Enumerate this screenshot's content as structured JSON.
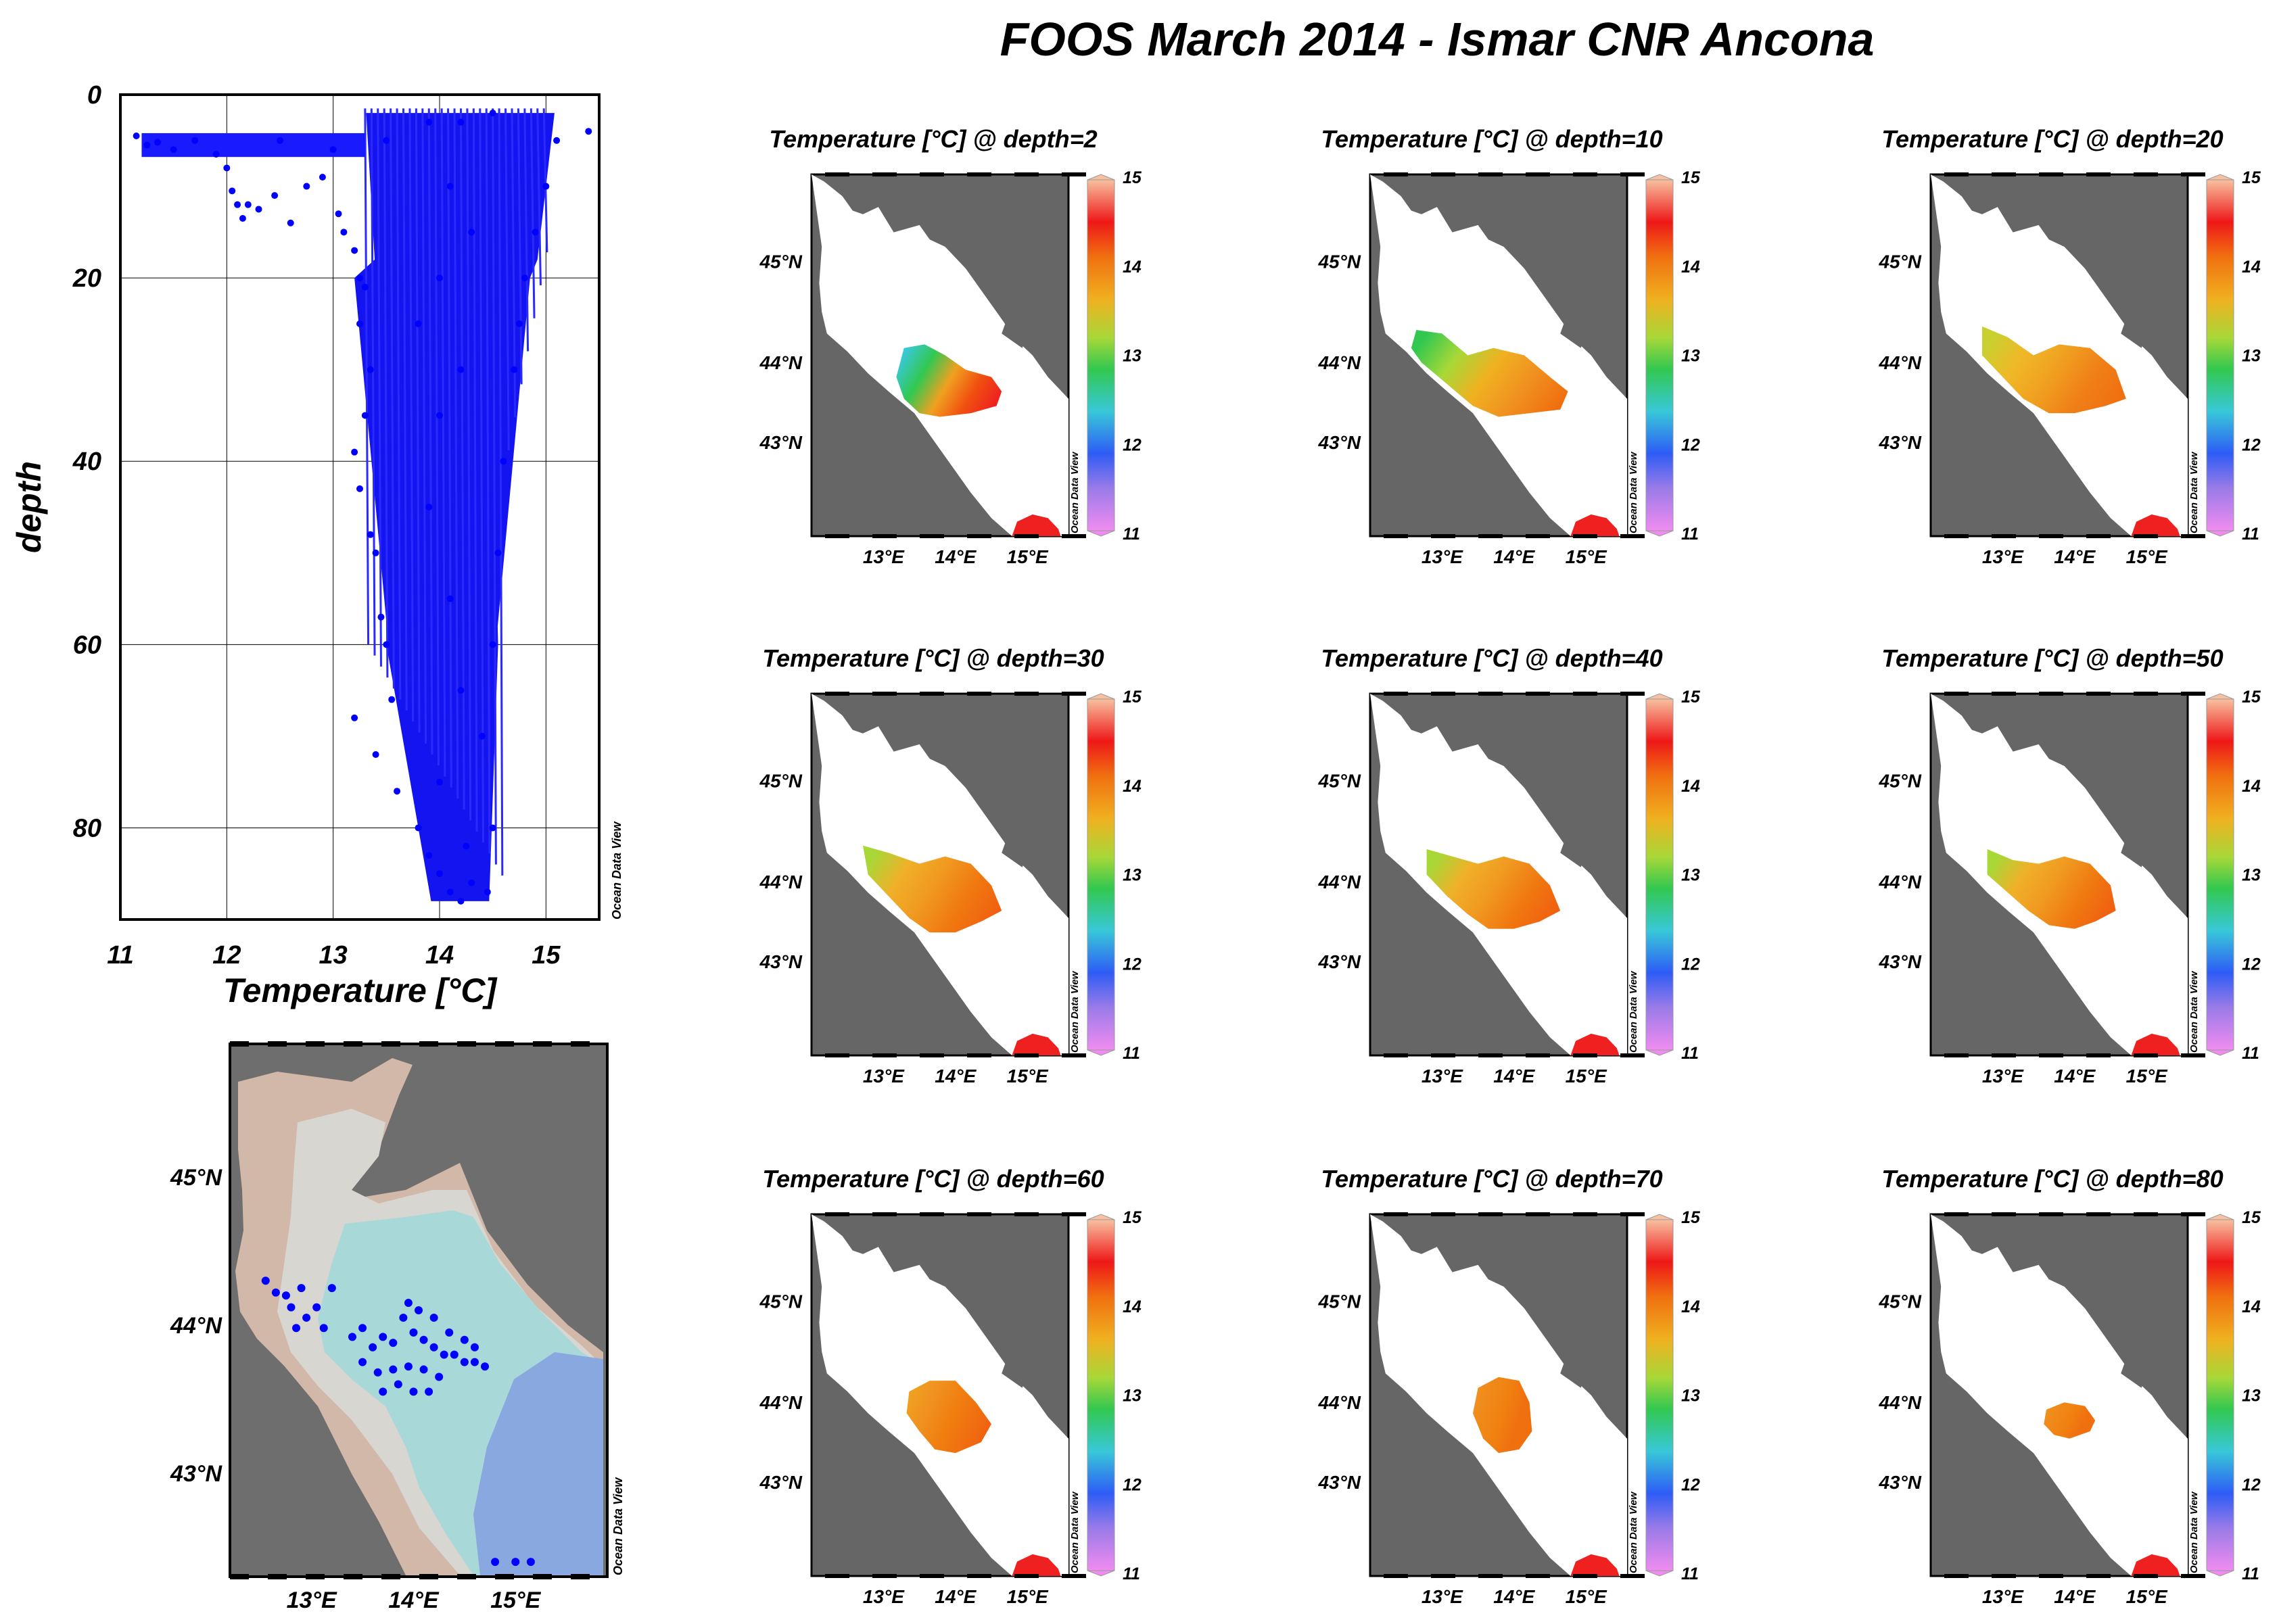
{
  "title": "FOOS March 2014 - Ismar CNR Ancona",
  "colors": {
    "land": "#666666",
    "sea": "#ffffff",
    "points": "#0000ff"
  },
  "chart_data": [
    {
      "type": "scatter",
      "title": "",
      "xlabel": "Temperature [°C]",
      "ylabel": "depth",
      "xlim": [
        11,
        15.5
      ],
      "ylim": [
        0,
        90
      ],
      "y_inverted": true,
      "x_ticks": [
        "11",
        "12",
        "13",
        "14",
        "15"
      ],
      "y_ticks": [
        "0",
        "20",
        "40",
        "60",
        "80"
      ],
      "grid": true,
      "watermark": "Ocean Data View",
      "series": [
        {
          "values_note_points": [
            [
              11.15,
              4.5
            ],
            [
              11.25,
              5.5
            ],
            [
              11.35,
              5.2
            ],
            [
              11.5,
              6
            ],
            [
              11.7,
              5
            ],
            [
              11.9,
              6.5
            ],
            [
              12.0,
              8
            ],
            [
              12.05,
              10.5
            ],
            [
              12.1,
              12
            ],
            [
              12.15,
              13.5
            ],
            [
              12.2,
              12
            ],
            [
              12.3,
              12.5
            ],
            [
              12.45,
              11
            ],
            [
              12.6,
              14
            ],
            [
              12.75,
              10
            ],
            [
              12.9,
              9
            ],
            [
              13.05,
              13
            ],
            [
              13.1,
              15
            ],
            [
              13.2,
              17
            ],
            [
              13.25,
              20
            ],
            [
              13.3,
              21
            ],
            [
              13.25,
              25
            ],
            [
              13.35,
              30
            ],
            [
              13.3,
              35
            ],
            [
              13.2,
              39
            ],
            [
              13.25,
              43
            ],
            [
              13.35,
              48
            ],
            [
              13.4,
              50
            ],
            [
              13.45,
              57
            ],
            [
              13.5,
              60
            ],
            [
              13.55,
              66
            ],
            [
              13.2,
              68
            ],
            [
              13.4,
              72
            ],
            [
              13.6,
              76
            ],
            [
              13.8,
              80
            ],
            [
              13.9,
              83
            ],
            [
              14.0,
              85
            ],
            [
              14.1,
              87
            ],
            [
              14.2,
              88
            ],
            [
              14.3,
              86
            ],
            [
              14.45,
              87
            ],
            [
              14.5,
              80
            ],
            [
              14.4,
              70
            ],
            [
              14.5,
              60
            ],
            [
              14.55,
              50
            ],
            [
              14.6,
              40
            ],
            [
              14.7,
              30
            ],
            [
              14.75,
              25
            ],
            [
              14.8,
              20
            ],
            [
              14.9,
              15
            ],
            [
              15.0,
              10
            ],
            [
              15.1,
              5
            ],
            [
              15.4,
              4
            ],
            [
              14.2,
              3
            ],
            [
              14.5,
              2
            ],
            [
              13.9,
              3
            ],
            [
              13.5,
              5
            ],
            [
              13.0,
              6
            ],
            [
              12.5,
              5
            ],
            [
              14.1,
              10
            ],
            [
              14.3,
              15
            ],
            [
              14.0,
              20
            ],
            [
              13.8,
              25
            ],
            [
              14.2,
              30
            ],
            [
              14.0,
              35
            ],
            [
              13.9,
              45
            ],
            [
              14.1,
              55
            ],
            [
              14.2,
              65
            ],
            [
              14.0,
              75
            ],
            [
              14.25,
              82
            ]
          ]
        }
      ]
    },
    {
      "type": "scatter",
      "title": "",
      "x_ticks": [
        "13°E",
        "14°E",
        "15°E"
      ],
      "y_ticks": [
        "43°N",
        "44°N",
        "45°N"
      ],
      "xlim": [
        12.2,
        15.9
      ],
      "ylim": [
        42.3,
        45.9
      ],
      "watermark": "Ocean Data View",
      "station_points": [
        [
          12.55,
          44.3
        ],
        [
          12.65,
          44.22
        ],
        [
          12.75,
          44.2
        ],
        [
          12.8,
          44.12
        ],
        [
          12.9,
          44.25
        ],
        [
          12.95,
          44.05
        ],
        [
          13.05,
          44.12
        ],
        [
          13.12,
          43.98
        ],
        [
          13.2,
          44.25
        ],
        [
          12.85,
          43.98
        ],
        [
          13.4,
          43.92
        ],
        [
          13.5,
          43.98
        ],
        [
          13.6,
          43.85
        ],
        [
          13.7,
          43.92
        ],
        [
          13.8,
          43.88
        ],
        [
          13.9,
          44.05
        ],
        [
          14.0,
          43.95
        ],
        [
          14.1,
          43.9
        ],
        [
          14.2,
          43.85
        ],
        [
          14.3,
          43.8
        ],
        [
          14.4,
          43.8
        ],
        [
          14.5,
          43.75
        ],
        [
          14.6,
          43.75
        ],
        [
          14.7,
          43.72
        ],
        [
          13.5,
          43.75
        ],
        [
          13.65,
          43.68
        ],
        [
          13.8,
          43.7
        ],
        [
          13.95,
          43.72
        ],
        [
          14.1,
          43.7
        ],
        [
          14.25,
          43.65
        ],
        [
          13.85,
          43.6
        ],
        [
          14.0,
          43.55
        ],
        [
          14.15,
          43.55
        ],
        [
          13.7,
          43.55
        ],
        [
          14.35,
          43.95
        ],
        [
          14.2,
          44.05
        ],
        [
          13.95,
          44.15
        ],
        [
          14.05,
          44.1
        ],
        [
          14.5,
          43.9
        ],
        [
          14.6,
          43.85
        ],
        [
          14.8,
          42.4
        ],
        [
          15.0,
          42.4
        ],
        [
          15.15,
          42.4
        ]
      ]
    },
    {
      "type": "heatmap",
      "title": "Temperature [°C] @ depth=2",
      "depth": 2,
      "colorbar": {
        "min": 11,
        "max": 15,
        "ticks": [
          "11",
          "12",
          "13",
          "14",
          "15"
        ]
      },
      "x_ticks": [
        "13°E",
        "14°E",
        "15°E"
      ],
      "y_ticks": [
        "43°N",
        "44°N",
        "45°N"
      ],
      "watermark": "Ocean Data View"
    },
    {
      "type": "heatmap",
      "title": "Temperature [°C] @ depth=10",
      "depth": 10,
      "colorbar": {
        "min": 11,
        "max": 15,
        "ticks": [
          "11",
          "12",
          "13",
          "14",
          "15"
        ]
      },
      "x_ticks": [
        "13°E",
        "14°E",
        "15°E"
      ],
      "y_ticks": [
        "43°N",
        "44°N",
        "45°N"
      ],
      "watermark": "Ocean Data View"
    },
    {
      "type": "heatmap",
      "title": "Temperature [°C] @ depth=20",
      "depth": 20,
      "colorbar": {
        "min": 11,
        "max": 15,
        "ticks": [
          "11",
          "12",
          "13",
          "14",
          "15"
        ]
      },
      "x_ticks": [
        "13°E",
        "14°E",
        "15°E"
      ],
      "y_ticks": [
        "43°N",
        "44°N",
        "45°N"
      ],
      "watermark": "Ocean Data View"
    },
    {
      "type": "heatmap",
      "title": "Temperature [°C] @ depth=30",
      "depth": 30,
      "colorbar": {
        "min": 11,
        "max": 15,
        "ticks": [
          "11",
          "12",
          "13",
          "14",
          "15"
        ]
      },
      "x_ticks": [
        "13°E",
        "14°E",
        "15°E"
      ],
      "y_ticks": [
        "43°N",
        "44°N",
        "45°N"
      ],
      "watermark": "Ocean Data View"
    },
    {
      "type": "heatmap",
      "title": "Temperature [°C] @ depth=40",
      "depth": 40,
      "colorbar": {
        "min": 11,
        "max": 15,
        "ticks": [
          "11",
          "12",
          "13",
          "14",
          "15"
        ]
      },
      "x_ticks": [
        "13°E",
        "14°E",
        "15°E"
      ],
      "y_ticks": [
        "43°N",
        "44°N",
        "45°N"
      ],
      "watermark": "Ocean Data View"
    },
    {
      "type": "heatmap",
      "title": "Temperature [°C] @ depth=50",
      "depth": 50,
      "colorbar": {
        "min": 11,
        "max": 15,
        "ticks": [
          "11",
          "12",
          "13",
          "14",
          "15"
        ]
      },
      "x_ticks": [
        "13°E",
        "14°E",
        "15°E"
      ],
      "y_ticks": [
        "43°N",
        "44°N",
        "45°N"
      ],
      "watermark": "Ocean Data View"
    },
    {
      "type": "heatmap",
      "title": "Temperature [°C] @ depth=60",
      "depth": 60,
      "colorbar": {
        "min": 11,
        "max": 15,
        "ticks": [
          "11",
          "12",
          "13",
          "14",
          "15"
        ]
      },
      "x_ticks": [
        "13°E",
        "14°E",
        "15°E"
      ],
      "y_ticks": [
        "43°N",
        "44°N",
        "45°N"
      ],
      "watermark": "Ocean Data View"
    },
    {
      "type": "heatmap",
      "title": "Temperature [°C] @ depth=70",
      "depth": 70,
      "colorbar": {
        "min": 11,
        "max": 15,
        "ticks": [
          "11",
          "12",
          "13",
          "14",
          "15"
        ]
      },
      "x_ticks": [
        "13°E",
        "14°E",
        "15°E"
      ],
      "y_ticks": [
        "43°N",
        "44°N",
        "45°N"
      ],
      "watermark": "Ocean Data View"
    },
    {
      "type": "heatmap",
      "title": "Temperature [°C] @ depth=80",
      "depth": 80,
      "colorbar": {
        "min": 11,
        "max": 15,
        "ticks": [
          "11",
          "12",
          "13",
          "14",
          "15"
        ]
      },
      "x_ticks": [
        "13°E",
        "14°E",
        "15°E"
      ],
      "y_ticks": [
        "43°N",
        "44°N",
        "45°N"
      ],
      "watermark": "Ocean Data View"
    }
  ]
}
